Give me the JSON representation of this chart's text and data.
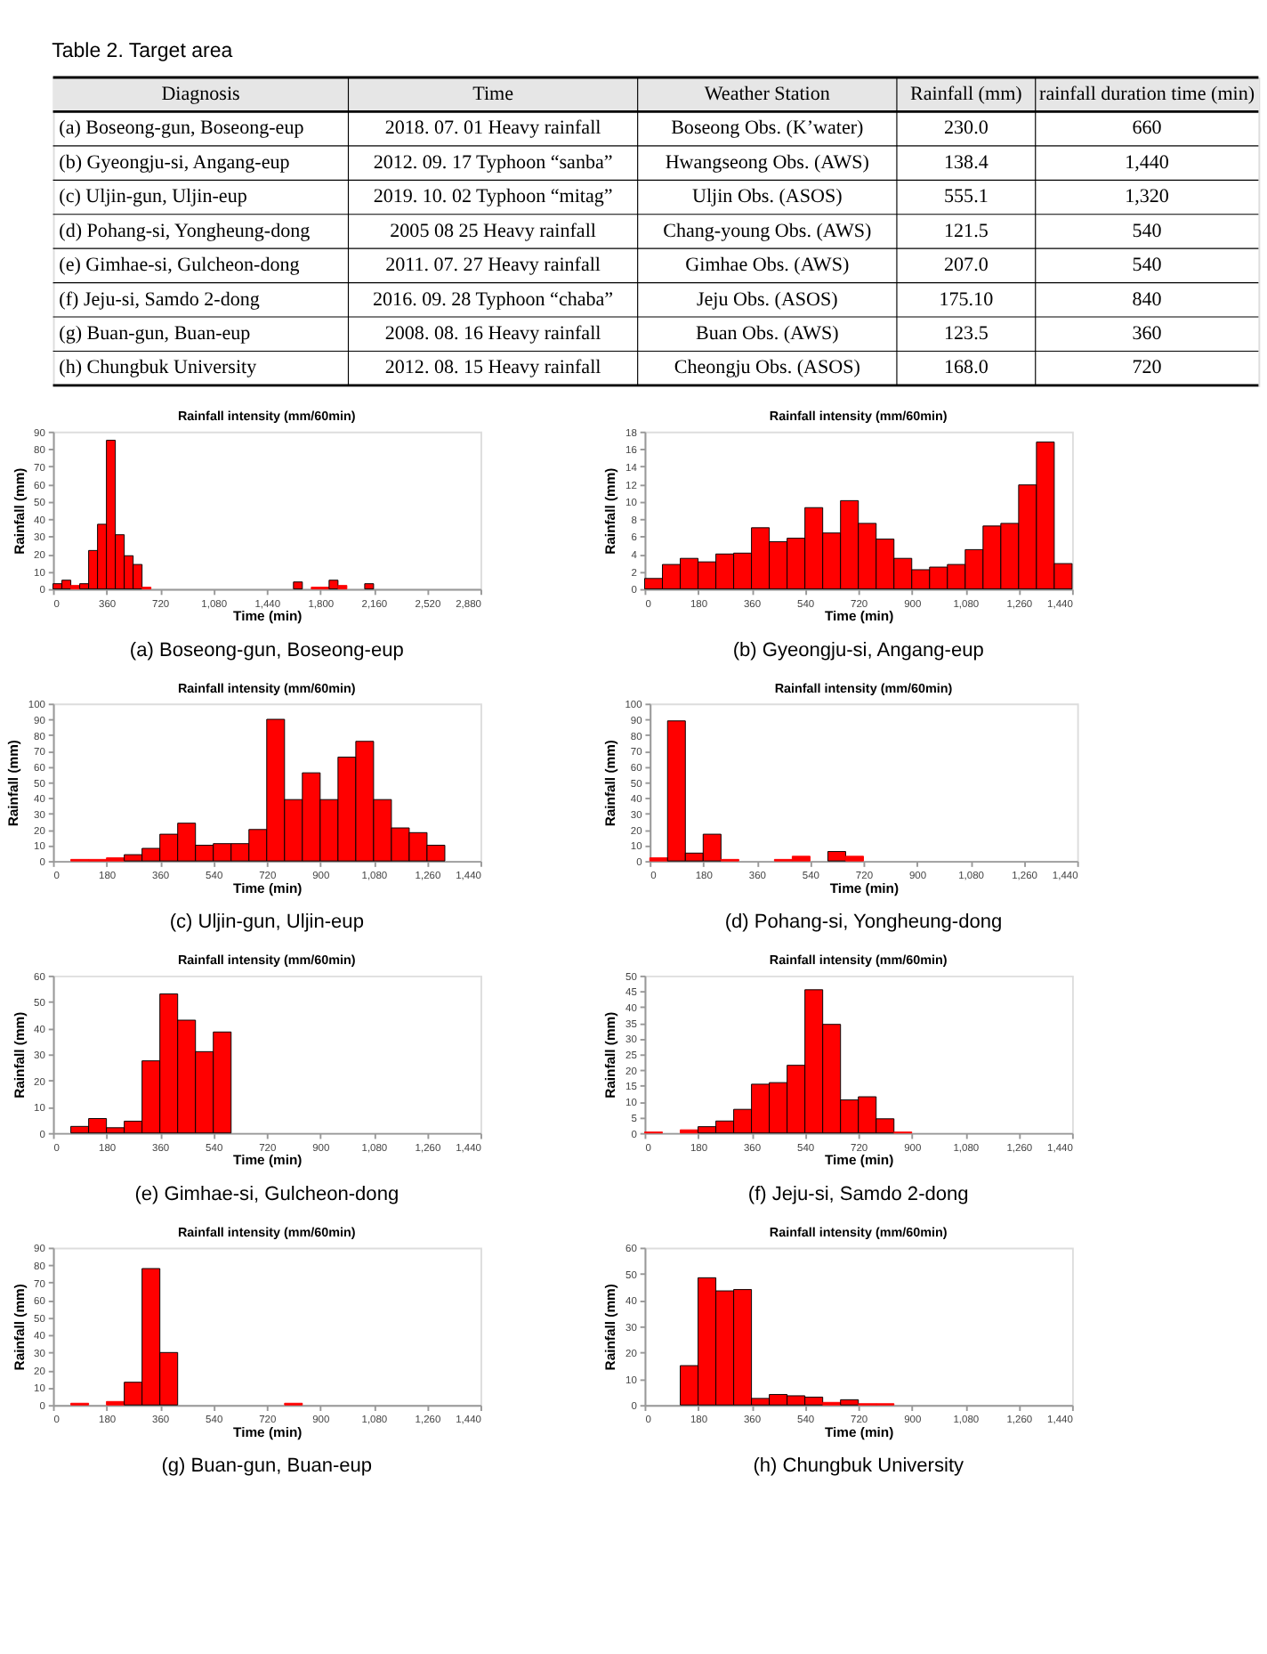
{
  "chart_data": [
    {
      "type": "other",
      "title": "Table 2. Target area",
      "categories": [
        "Diagnosis",
        "Time",
        "Weather Station",
        "Rainfall (mm)",
        "rainfall duration time (min)"
      ],
      "annotations": [
        "(a) Boseong-gun, Boseong-eup",
        "2018. 07. 01 Heavy rainfall",
        "Boseong Obs. (K’water)",
        "230.0",
        "660",
        "(b) Gyeongju-si, Angang-eup",
        "2012. 09. 17 Typhoon “sanba”",
        "Hwangseong Obs. (AWS)",
        "138.4",
        "1,440",
        "(c) Uljin-gun, Uljin-eup",
        "2019. 10. 02 Typhoon “mitag”",
        "Uljin Obs. (ASOS)",
        "555.1",
        "1,320",
        "(d) Pohang-si, Yongheung-dong",
        "2005 08 25 Heavy rainfall",
        "Chang-young Obs. (AWS)",
        "121.5",
        "540",
        "(e) Gimhae-si, Gulcheon-dong",
        "2011. 07. 27 Heavy rainfall",
        "Gimhae Obs. (AWS)",
        "207.0",
        "540",
        "(f) Jeju-si, Samdo 2-dong",
        "2016. 09. 28 Typhoon “chaba”",
        "Jeju Obs. (ASOS)",
        "175.10",
        "840",
        "(g) Buan-gun, Buan-eup",
        "2008. 08. 16 Heavy rainfall",
        "Buan Obs. (AWS)",
        "123.5",
        "360",
        "(h) Chungbuk University",
        "2012. 08. 15 Heavy rainfall",
        "Cheongju Obs. (ASOS)",
        "168.0",
        "720"
      ]
    },
    {
      "type": "histogram",
      "title": "Rainfall intensity (mm/60min)",
      "xlabel": "Time (min)",
      "ylabel": "Rainfall (mm)",
      "color": "#ff0000",
      "annotations": [
        "(a) Boseong-gun, Boseong-eup"
      ],
      "bins": [
        0,
        60,
        120,
        180,
        240,
        300,
        360,
        420,
        480,
        540,
        600,
        660,
        720,
        780,
        840,
        900,
        960,
        1020,
        1080,
        1140,
        1200,
        1260,
        1320,
        1380,
        1440,
        1500,
        1560,
        1620,
        1680,
        1740,
        1800,
        1860,
        1920,
        1980,
        2040,
        2100,
        2160
      ],
      "values": [
        3,
        5,
        2,
        3,
        22,
        37,
        85,
        31,
        19,
        14,
        1,
        0,
        0,
        0,
        0,
        0,
        0,
        0,
        0,
        0,
        0,
        0,
        0,
        0,
        0,
        0,
        0,
        4,
        0,
        1,
        1,
        5,
        2,
        0,
        0,
        3
      ],
      "xlim": [
        0,
        2880
      ],
      "xticks": [
        0,
        360,
        {
          "value": 720,
          "label": "720"
        },
        {
          "value": 1080,
          "label": "1,080"
        },
        {
          "value": 1440,
          "label": "1,440"
        },
        {
          "value": 1800,
          "label": "1,800"
        },
        {
          "value": 2160,
          "label": "2,160"
        },
        {
          "value": 2520,
          "label": "2,520"
        },
        {
          "value": 2880,
          "label": "2,880"
        }
      ],
      "ylim": [
        0,
        90
      ],
      "yticks": [
        0,
        10,
        20,
        30,
        40,
        50,
        60,
        70,
        80,
        90
      ]
    },
    {
      "type": "histogram",
      "title": "Rainfall intensity (mm/60min)",
      "xlabel": "Time (min)",
      "ylabel": "Rainfall (mm)",
      "color": "#ff0000",
      "annotations": [
        "(b) Gyeongju-si, Angang-eup"
      ],
      "bins": [
        0,
        60,
        120,
        180,
        240,
        300,
        360,
        420,
        480,
        540,
        600,
        660,
        720,
        780,
        840,
        900,
        960,
        1020,
        1080,
        1140,
        1200,
        1260,
        1320,
        1380,
        1440
      ],
      "values": [
        1.2,
        2.8,
        3.5,
        3.1,
        4.0,
        4.1,
        7.0,
        5.4,
        5.8,
        9.3,
        6.4,
        10.1,
        7.5,
        5.7,
        3.5,
        2.2,
        2.5,
        2.8,
        4.5,
        7.2,
        7.5,
        11.9,
        16.8,
        2.9
      ],
      "xlim": [
        0,
        1440
      ],
      "xticks": [
        0,
        180,
        360,
        540,
        720,
        900,
        {
          "value": 1080,
          "label": "1,080"
        },
        {
          "value": 1260,
          "label": "1,260"
        },
        {
          "value": 1440,
          "label": "1,440"
        }
      ],
      "ylim": [
        0,
        18
      ],
      "yticks": [
        0,
        2,
        4,
        6,
        8,
        10,
        12,
        14,
        16,
        18
      ]
    },
    {
      "type": "histogram",
      "title": "Rainfall intensity (mm/60min)",
      "xlabel": "Time (min)",
      "ylabel": "Rainfall (mm)",
      "color": "#ff0000",
      "annotations": [
        "(c) Uljin-gun, Uljin-eup"
      ],
      "bins": [
        60,
        120,
        180,
        240,
        300,
        360,
        420,
        480,
        540,
        600,
        660,
        720,
        780,
        840,
        900,
        960,
        1020,
        1080,
        1140,
        1200,
        1260,
        1320
      ],
      "values": [
        1,
        1,
        2,
        4,
        8,
        17,
        24,
        10,
        11,
        11,
        20,
        90,
        39,
        56,
        39,
        66,
        76,
        39,
        21,
        18,
        10
      ],
      "xlim": [
        0,
        1440
      ],
      "xticks": [
        0,
        180,
        360,
        540,
        720,
        900,
        {
          "value": 1080,
          "label": "1,080"
        },
        {
          "value": 1260,
          "label": "1,260"
        },
        {
          "value": 1440,
          "label": "1,440"
        }
      ],
      "ylim": [
        0,
        100
      ],
      "yticks": [
        0,
        10,
        20,
        30,
        40,
        50,
        60,
        70,
        80,
        90,
        100
      ]
    },
    {
      "type": "histogram",
      "title": "Rainfall intensity (mm/60min)",
      "xlabel": "Time (min)",
      "ylabel": "Rainfall (mm)",
      "color": "#ff0000",
      "annotations": [
        "(d) Pohang-si, Yongheung-dong"
      ],
      "bins": [
        0,
        60,
        120,
        180,
        240,
        300,
        360,
        420,
        480,
        540,
        600,
        660,
        720
      ],
      "values": [
        2,
        89,
        5,
        17,
        1,
        0,
        0,
        1,
        3,
        0,
        6,
        3
      ],
      "xlim": [
        0,
        1440
      ],
      "xticks": [
        0,
        180,
        360,
        540,
        720,
        900,
        {
          "value": 1080,
          "label": "1,080"
        },
        {
          "value": 1260,
          "label": "1,260"
        },
        {
          "value": 1440,
          "label": "1,440"
        }
      ],
      "ylim": [
        0,
        100
      ],
      "yticks": [
        0,
        10,
        20,
        30,
        40,
        50,
        60,
        70,
        80,
        90,
        100
      ]
    },
    {
      "type": "histogram",
      "title": "Rainfall intensity (mm/60min)",
      "xlabel": "Time (min)",
      "ylabel": "Rainfall (mm)",
      "color": "#ff0000",
      "annotations": [
        "(e) Gimhae-si, Gulcheon-dong"
      ],
      "bins": [
        60,
        120,
        180,
        240,
        300,
        360,
        420,
        480,
        540,
        600
      ],
      "values": [
        2.5,
        5.5,
        2,
        4.5,
        27.5,
        53,
        43,
        31,
        38.5
      ],
      "xlim": [
        0,
        1440
      ],
      "xticks": [
        0,
        180,
        360,
        540,
        720,
        900,
        {
          "value": 1080,
          "label": "1,080"
        },
        {
          "value": 1260,
          "label": "1,260"
        },
        {
          "value": 1440,
          "label": "1,440"
        }
      ],
      "ylim": [
        0,
        60
      ],
      "yticks": [
        0,
        10,
        20,
        30,
        40,
        50,
        60
      ]
    },
    {
      "type": "histogram",
      "title": "Rainfall intensity (mm/60min)",
      "xlabel": "Time (min)",
      "ylabel": "Rainfall (mm)",
      "color": "#ff0000",
      "annotations": [
        "(f) Jeju-si, Samdo 2-dong"
      ],
      "bins": [
        0,
        60,
        120,
        180,
        240,
        300,
        360,
        420,
        480,
        540,
        600,
        660,
        720,
        780,
        840,
        900
      ],
      "values": [
        0.3,
        0,
        1,
        2,
        3.8,
        7.5,
        15.5,
        16,
        21.5,
        45.5,
        34.5,
        10.5,
        11.5,
        4.5,
        0.3
      ],
      "xlim": [
        0,
        1440
      ],
      "xticks": [
        0,
        180,
        360,
        540,
        720,
        900,
        {
          "value": 1080,
          "label": "1,080"
        },
        {
          "value": 1260,
          "label": "1,260"
        },
        {
          "value": 1440,
          "label": "1,440"
        }
      ],
      "ylim": [
        0,
        50
      ],
      "yticks": [
        0,
        5,
        10,
        15,
        20,
        25,
        30,
        35,
        40,
        45,
        50
      ]
    },
    {
      "type": "histogram",
      "title": "Rainfall intensity (mm/60min)",
      "xlabel": "Time (min)",
      "ylabel": "Rainfall (mm)",
      "color": "#ff0000",
      "annotations": [
        "(g) Buan-gun, Buan-eup"
      ],
      "bins": [
        60,
        120,
        180,
        240,
        300,
        360,
        420,
        480,
        540,
        600,
        660,
        720,
        780,
        840
      ],
      "values": [
        1,
        0,
        2,
        13,
        78,
        30,
        0,
        0,
        0,
        0,
        0,
        0,
        1
      ],
      "xlim": [
        0,
        1440
      ],
      "xticks": [
        0,
        180,
        360,
        540,
        720,
        900,
        {
          "value": 1080,
          "label": "1,080"
        },
        {
          "value": 1260,
          "label": "1,260"
        },
        {
          "value": 1440,
          "label": "1,440"
        }
      ],
      "ylim": [
        0,
        90
      ],
      "yticks": [
        0,
        10,
        20,
        30,
        40,
        50,
        60,
        70,
        80,
        90
      ]
    },
    {
      "type": "histogram",
      "title": "Rainfall intensity (mm/60min)",
      "xlabel": "Time (min)",
      "ylabel": "Rainfall (mm)",
      "color": "#ff0000",
      "annotations": [
        "(h) Chungbuk University"
      ],
      "bins": [
        120,
        180,
        240,
        300,
        360,
        420,
        480,
        540,
        600,
        660,
        720,
        780,
        840
      ],
      "values": [
        15,
        48.5,
        43.5,
        44,
        2.5,
        4,
        3.5,
        3,
        1,
        2,
        0.5,
        0.5
      ],
      "xlim": [
        0,
        1440
      ],
      "xticks": [
        0,
        180,
        360,
        540,
        720,
        900,
        {
          "value": 1080,
          "label": "1,080"
        },
        {
          "value": 1260,
          "label": "1,260"
        },
        {
          "value": 1440,
          "label": "1,440"
        }
      ],
      "ylim": [
        0,
        60
      ],
      "yticks": [
        0,
        10,
        20,
        30,
        40,
        50,
        60
      ]
    }
  ]
}
